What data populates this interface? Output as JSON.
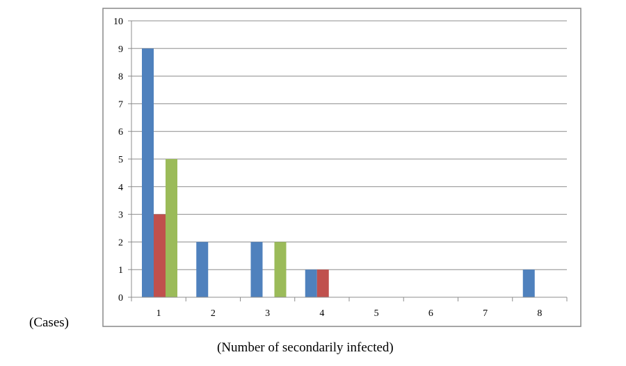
{
  "chart_data": {
    "type": "bar",
    "categories": [
      "1",
      "2",
      "3",
      "4",
      "5",
      "6",
      "7",
      "8"
    ],
    "series": [
      {
        "color": "#4f81bd",
        "values": [
          9,
          2,
          2,
          1,
          0,
          0,
          0,
          1
        ]
      },
      {
        "color": "#c0504d",
        "values": [
          3,
          0,
          0,
          1,
          0,
          0,
          0,
          0
        ]
      },
      {
        "color": "#9bbb59",
        "values": [
          5,
          0,
          2,
          0,
          0,
          0,
          0,
          0
        ]
      }
    ],
    "ylabel": "(Cases)",
    "xlabel": "(Number of secondarily infected)",
    "ylim": [
      0,
      10
    ],
    "yticks": [
      "0",
      "1",
      "2",
      "3",
      "4",
      "5",
      "6",
      "7",
      "8",
      "9",
      "10"
    ],
    "grid": true,
    "legend": "none"
  }
}
